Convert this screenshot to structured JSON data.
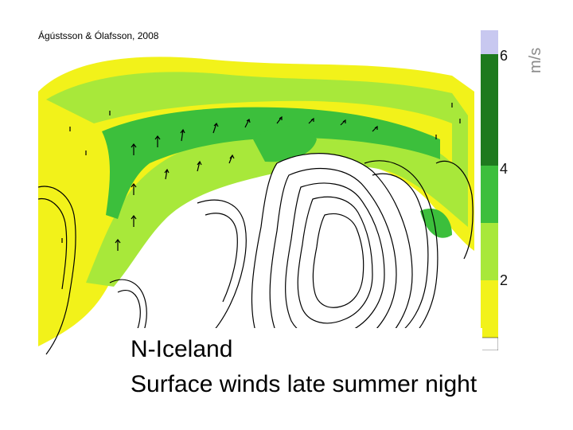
{
  "credit": "Ágústsson & Ólafsson, 2008",
  "caption": {
    "line1": "N-Iceland",
    "line2": "Surface winds late summer night"
  },
  "legend": {
    "unit": "m/s",
    "ticks": [
      "6",
      "4",
      "2"
    ],
    "colors": {
      "violet": "#c8c8f0",
      "dark_green": "#1e7a1e",
      "green": "#3cbf3c",
      "light_green": "#a8e83a",
      "yellow": "#f2f21a",
      "white": "#ffffff"
    }
  }
}
